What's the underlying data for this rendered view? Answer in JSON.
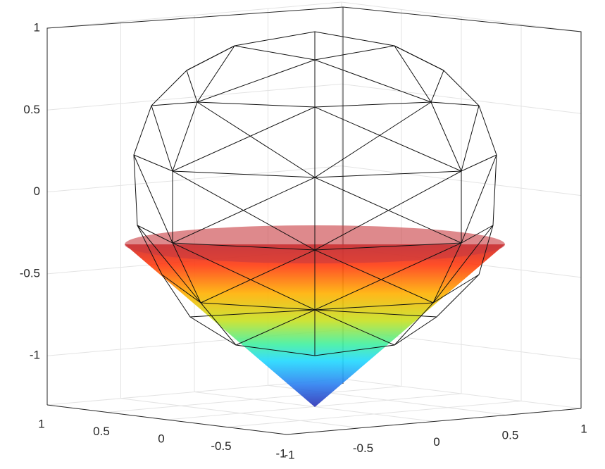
{
  "chart_data": {
    "type": "surface3d",
    "xlim": [
      -1,
      1
    ],
    "xticks": [
      -1,
      -0.5,
      0,
      0.5,
      1
    ],
    "ylim": [
      -1,
      1
    ],
    "yticks": [
      -1,
      -0.5,
      0,
      0.5,
      1
    ],
    "zlim": [
      -1.3,
      1
    ],
    "zticks": [
      -1,
      -0.5,
      0,
      0.5,
      1
    ],
    "grid": true
  }
}
